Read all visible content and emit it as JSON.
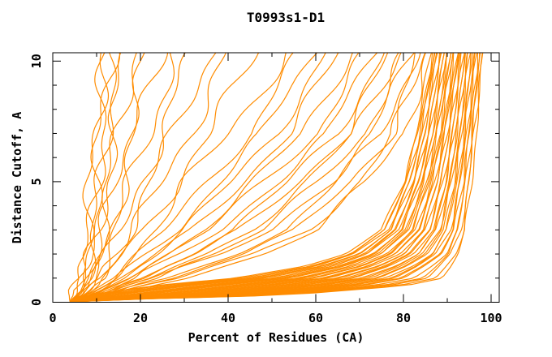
{
  "page": {
    "background": "#ffffff"
  },
  "chart_data": {
    "type": "line",
    "title": "T0993s1-D1",
    "xlabel": "Percent of Residues (CA)",
    "ylabel": "Distance Cutoff, A",
    "xlim": [
      0,
      101.9
    ],
    "ylim": [
      0,
      10.35
    ],
    "x_major_ticks": [
      0,
      20,
      40,
      60,
      80,
      100
    ],
    "x_minor_ticks": [
      10,
      30,
      50,
      70,
      90
    ],
    "y_major_ticks": [
      0,
      5,
      10
    ],
    "y_minor_ticks": [
      1,
      2,
      3,
      4,
      6,
      7,
      8,
      9
    ],
    "grid": false,
    "legend": "none",
    "line_color": "#ff8c00",
    "axis_color": "#000000",
    "cutoffs": [
      0.05,
      0.3,
      0.7,
      1,
      1.5,
      2,
      3,
      5,
      7,
      10
    ],
    "series": [
      [
        4,
        5,
        6,
        6,
        7,
        7,
        8,
        9,
        10,
        11
      ],
      [
        4,
        5,
        6,
        7,
        7,
        8,
        9,
        10,
        11,
        12
      ],
      [
        4,
        5,
        6,
        7,
        8,
        8,
        9,
        10,
        11,
        13
      ],
      [
        4,
        5,
        6,
        7,
        8,
        9,
        10,
        11,
        12,
        14
      ],
      [
        4,
        6,
        7,
        8,
        9,
        9,
        11,
        12,
        14,
        16
      ],
      [
        4,
        6,
        7,
        8,
        9,
        10,
        11,
        13,
        15,
        18
      ],
      [
        4,
        6,
        8,
        9,
        10,
        11,
        12,
        14,
        17,
        21
      ],
      [
        4,
        6,
        8,
        9,
        10,
        11,
        13,
        16,
        19,
        24
      ],
      [
        4,
        7,
        8,
        10,
        11,
        12,
        14,
        18,
        22,
        27
      ],
      [
        4,
        7,
        9,
        10,
        12,
        13,
        16,
        20,
        25,
        31
      ],
      [
        4,
        7,
        9,
        11,
        12,
        14,
        17,
        22,
        28,
        35
      ],
      [
        4,
        7,
        10,
        11,
        13,
        15,
        19,
        25,
        31,
        39
      ],
      [
        4,
        8,
        10,
        12,
        14,
        16,
        21,
        28,
        36,
        45
      ],
      [
        4,
        8,
        11,
        13,
        15,
        18,
        23,
        31,
        40,
        52
      ],
      [
        4,
        8,
        12,
        14,
        17,
        20,
        26,
        35,
        45,
        55
      ],
      [
        4,
        8,
        12,
        15,
        18,
        21,
        28,
        38,
        48,
        58
      ],
      [
        4,
        9,
        13,
        16,
        19,
        23,
        30,
        41,
        51,
        61
      ],
      [
        4,
        9,
        13,
        16,
        20,
        24,
        32,
        43,
        54,
        64
      ],
      [
        4,
        9,
        14,
        17,
        21,
        26,
        34,
        46,
        57,
        67
      ],
      [
        4,
        10,
        14,
        18,
        22,
        27,
        36,
        48,
        60,
        70
      ],
      [
        4,
        10,
        15,
        19,
        24,
        29,
        38,
        51,
        63,
        72
      ],
      [
        4,
        10,
        15,
        20,
        25,
        31,
        41,
        54,
        65,
        74
      ],
      [
        4,
        11,
        16,
        21,
        26,
        33,
        43,
        56,
        67,
        76
      ],
      [
        4,
        11,
        17,
        22,
        28,
        35,
        45,
        58,
        69,
        78
      ],
      [
        4,
        11,
        17,
        23,
        29,
        37,
        48,
        61,
        71,
        79
      ],
      [
        4,
        12,
        18,
        24,
        31,
        39,
        50,
        63,
        73,
        81
      ],
      [
        4,
        12,
        19,
        26,
        33,
        41,
        53,
        65,
        75,
        82
      ],
      [
        4,
        12,
        20,
        27,
        35,
        44,
        56,
        68,
        77,
        83
      ],
      [
        4,
        13,
        21,
        29,
        37,
        46,
        58,
        70,
        78,
        84
      ],
      [
        4,
        13,
        22,
        30,
        39,
        48,
        60,
        72,
        80,
        85
      ],
      [
        4,
        8,
        24,
        42,
        58,
        67,
        75,
        80,
        83,
        86
      ],
      [
        4,
        9.2,
        25.4,
        43.1,
        58.8,
        67.6,
        75.5,
        80.4,
        83.3,
        86.3
      ],
      [
        4,
        10.4,
        26.8,
        44.3,
        59.6,
        68.3,
        76,
        80.8,
        83.7,
        86.6
      ],
      [
        4,
        11.5,
        28.2,
        45.4,
        60.4,
        68.9,
        76.5,
        81.2,
        84,
        86.9
      ],
      [
        4,
        12.7,
        29.5,
        46.5,
        61.2,
        69.6,
        76.9,
        81.6,
        84.4,
        87.2
      ],
      [
        4,
        13.9,
        30.9,
        47.6,
        62,
        70.2,
        77.4,
        82,
        84.7,
        87.5
      ],
      [
        4,
        15.1,
        32.3,
        48.8,
        62.8,
        70.8,
        77.9,
        82.4,
        85.1,
        87.8
      ],
      [
        4,
        16.3,
        33.7,
        49.9,
        63.6,
        71.5,
        78.4,
        82.8,
        85.4,
        88.2
      ],
      [
        4,
        17.4,
        35.1,
        51,
        64.4,
        72.1,
        78.9,
        83.2,
        85.8,
        88.5
      ],
      [
        4,
        18.6,
        36.5,
        52.2,
        65.2,
        72.8,
        79.4,
        83.6,
        86.1,
        88.8
      ],
      [
        4,
        19.8,
        37.9,
        53.3,
        66,
        73.4,
        79.9,
        84,
        86.5,
        89.1
      ],
      [
        4,
        21,
        39.2,
        54.4,
        66.7,
        74.1,
        80.4,
        84.4,
        86.8,
        89.4
      ],
      [
        4,
        22.2,
        40.6,
        55.5,
        67.5,
        74.7,
        80.8,
        84.8,
        87.2,
        89.7
      ],
      [
        4,
        23.3,
        42,
        56.7,
        68.3,
        75.3,
        81.3,
        85.2,
        87.5,
        90
      ],
      [
        4,
        24.5,
        43.4,
        57.8,
        69.1,
        76,
        81.8,
        85.6,
        87.8,
        90.3
      ],
      [
        4,
        25.7,
        44.8,
        58.9,
        69.9,
        76.6,
        82.3,
        86,
        88.2,
        90.6
      ],
      [
        4,
        26.9,
        46.2,
        60,
        70.7,
        77.3,
        82.8,
        86.4,
        88.5,
        90.9
      ],
      [
        4,
        28.1,
        47.5,
        61.2,
        71.5,
        77.9,
        83.3,
        86.7,
        88.9,
        91.2
      ],
      [
        4,
        29.2,
        48.9,
        62.3,
        72.3,
        78.5,
        83.8,
        87.1,
        89.2,
        91.5
      ],
      [
        4,
        30.4,
        50.3,
        63.4,
        73.1,
        79.2,
        84.3,
        87.5,
        89.6,
        91.9
      ],
      [
        4,
        31.6,
        51.7,
        64.6,
        73.9,
        79.8,
        84.7,
        87.9,
        89.9,
        92.2
      ],
      [
        4,
        32.8,
        53.1,
        65.7,
        74.7,
        80.5,
        85.2,
        88.3,
        90.3,
        92.5
      ],
      [
        4,
        34,
        54.5,
        66.8,
        75.5,
        81.1,
        85.7,
        88.7,
        90.6,
        92.8
      ],
      [
        4,
        35.1,
        55.9,
        67.9,
        76.3,
        81.7,
        86.2,
        89.1,
        91,
        93.1
      ],
      [
        4,
        36.3,
        57.2,
        69.1,
        77.1,
        82.4,
        86.7,
        89.5,
        91.3,
        93.4
      ],
      [
        4,
        37.5,
        58.6,
        70.2,
        77.9,
        83,
        87.2,
        89.9,
        91.6,
        93.7
      ],
      [
        4,
        38.7,
        60,
        71.3,
        78.7,
        83.7,
        87.7,
        90.3,
        92,
        94
      ],
      [
        4,
        39.9,
        61.4,
        72.5,
        79.5,
        84.3,
        88.1,
        90.7,
        92.3,
        94.3
      ],
      [
        4,
        41,
        62.8,
        73.6,
        80.3,
        84.9,
        88.6,
        91.1,
        92.7,
        94.6
      ],
      [
        4,
        42.2,
        64.2,
        74.7,
        81.1,
        85.6,
        89.1,
        91.5,
        93,
        94.9
      ],
      [
        4,
        43.4,
        65.6,
        75.8,
        81.9,
        86.2,
        89.6,
        91.9,
        93.4,
        95.2
      ],
      [
        4,
        44.6,
        66.9,
        77,
        82.7,
        86.9,
        90.1,
        92.3,
        93.7,
        95.5
      ],
      [
        4,
        45.8,
        68.3,
        78.1,
        83.4,
        87.5,
        90.6,
        92.7,
        94.1,
        95.9
      ],
      [
        4,
        46.9,
        69.7,
        79.2,
        84.2,
        88.2,
        91.1,
        93.1,
        94.4,
        96.2
      ],
      [
        4,
        48.1,
        71.1,
        80.4,
        85,
        88.8,
        91.6,
        93.5,
        94.8,
        96.5
      ],
      [
        4,
        49.3,
        73.5,
        82.5,
        86.3,
        89.6,
        92.1,
        93.9,
        95.1,
        96.8
      ],
      [
        4,
        50.5,
        75,
        84,
        87.3,
        90.3,
        92.6,
        94.3,
        95.4,
        97.1
      ],
      [
        4,
        51.7,
        77,
        85.7,
        88.5,
        91,
        93.1,
        94.7,
        95.8,
        97.4
      ],
      [
        4,
        52.8,
        79,
        87.3,
        89.7,
        91.8,
        93.6,
        95.1,
        96.1,
        97.7
      ],
      [
        4,
        54,
        81,
        89,
        91,
        92.5,
        94.2,
        95.5,
        96.5,
        98
      ]
    ]
  }
}
